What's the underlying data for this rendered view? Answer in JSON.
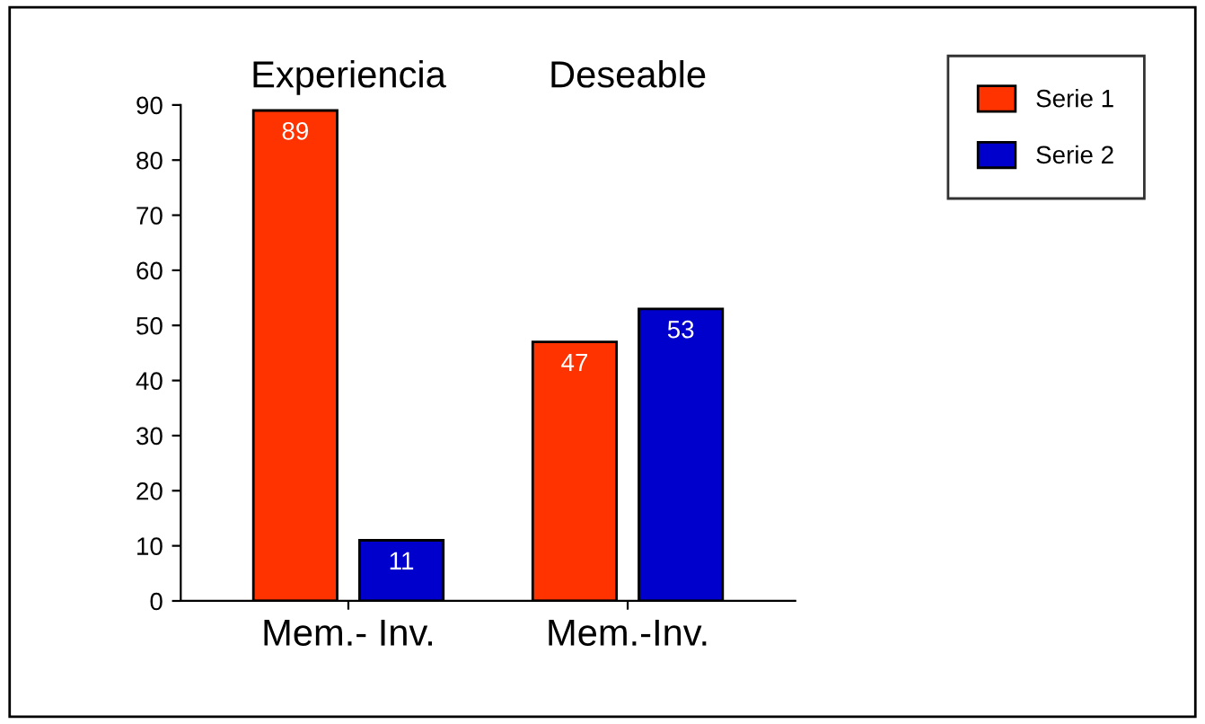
{
  "chart_data": {
    "type": "bar",
    "categories": [
      "Mem.- Inv.",
      "Mem.-Inv."
    ],
    "series": [
      {
        "name": "Serie 1",
        "color": "#ff3300",
        "values": [
          89,
          47
        ]
      },
      {
        "name": "Serie 2",
        "color": "#0000cc",
        "values": [
          11,
          53
        ]
      }
    ],
    "annotations": [
      "Experiencia",
      "Deseable"
    ],
    "ylim": [
      0,
      90
    ],
    "yticks": [
      0,
      10,
      20,
      30,
      40,
      50,
      60,
      70,
      80,
      90
    ],
    "data_labels": true,
    "legend": "top right",
    "grid": false
  }
}
